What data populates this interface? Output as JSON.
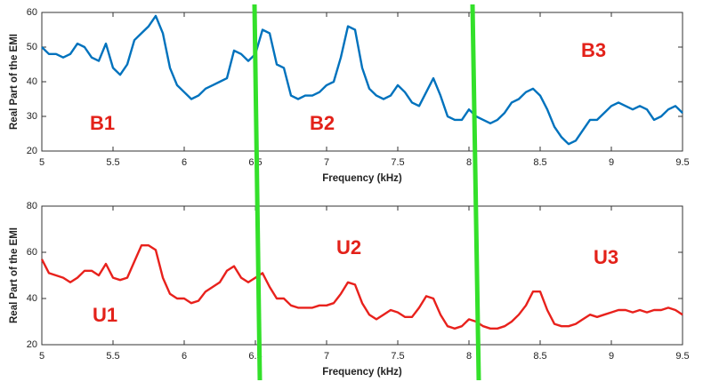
{
  "chart_data": [
    {
      "type": "line",
      "xlabel": "Frequency (kHz)",
      "ylabel": "Real Part of the EMI",
      "x": [
        5,
        5.05,
        5.1,
        5.15,
        5.2,
        5.25,
        5.3,
        5.35,
        5.4,
        5.45,
        5.5,
        5.55,
        5.6,
        5.65,
        5.7,
        5.75,
        5.8,
        5.85,
        5.9,
        5.95,
        6,
        6.05,
        6.1,
        6.15,
        6.2,
        6.25,
        6.3,
        6.35,
        6.4,
        6.45,
        6.5,
        6.55,
        6.6,
        6.65,
        6.7,
        6.75,
        6.8,
        6.85,
        6.9,
        6.95,
        7,
        7.05,
        7.1,
        7.15,
        7.2,
        7.25,
        7.3,
        7.35,
        7.4,
        7.45,
        7.5,
        7.55,
        7.6,
        7.65,
        7.7,
        7.75,
        7.8,
        7.85,
        7.9,
        7.95,
        8,
        8.05,
        8.1,
        8.15,
        8.2,
        8.25,
        8.3,
        8.35,
        8.4,
        8.45,
        8.5,
        8.55,
        8.6,
        8.65,
        8.7,
        8.75,
        8.8,
        8.85,
        8.9,
        8.95,
        9,
        9.05,
        9.1,
        9.15,
        9.2,
        9.25,
        9.3,
        9.35,
        9.4,
        9.45,
        9.5
      ],
      "series": [
        {
          "color": "#0072bd",
          "values": [
            50,
            48,
            48,
            47,
            48,
            51,
            50,
            47,
            46,
            51,
            44,
            42,
            45,
            52,
            54,
            56,
            59,
            54,
            44,
            39,
            37,
            35,
            36,
            38,
            39,
            40,
            41,
            49,
            48,
            46,
            48,
            55,
            54,
            45,
            44,
            36,
            35,
            36,
            36,
            37,
            39,
            40,
            47,
            56,
            55,
            44,
            38,
            36,
            35,
            36,
            39,
            37,
            34,
            33,
            37,
            41,
            36,
            30,
            29,
            29,
            32,
            30,
            29,
            28,
            29,
            31,
            34,
            35,
            37,
            38,
            36,
            32,
            27,
            24,
            22,
            23,
            26,
            29,
            29,
            31,
            33,
            34,
            33,
            32,
            33,
            32,
            29,
            30,
            32,
            33,
            31
          ]
        }
      ],
      "xlim": [
        5,
        9.5
      ],
      "ylim": [
        20,
        60
      ],
      "xticks": [
        5,
        5.5,
        6,
        6.5,
        7,
        7.5,
        8,
        8.5,
        9,
        9.5
      ],
      "yticks": [
        20,
        30,
        40,
        50,
        60
      ],
      "annotations": [
        "B1",
        "B2",
        "B3"
      ]
    },
    {
      "type": "line",
      "xlabel": "Frequency (kHz)",
      "ylabel": "Real Part of the EMI",
      "x": [
        5,
        5.05,
        5.1,
        5.15,
        5.2,
        5.25,
        5.3,
        5.35,
        5.4,
        5.45,
        5.5,
        5.55,
        5.6,
        5.65,
        5.7,
        5.75,
        5.8,
        5.85,
        5.9,
        5.95,
        6,
        6.05,
        6.1,
        6.15,
        6.2,
        6.25,
        6.3,
        6.35,
        6.4,
        6.45,
        6.5,
        6.55,
        6.6,
        6.65,
        6.7,
        6.75,
        6.8,
        6.85,
        6.9,
        6.95,
        7,
        7.05,
        7.1,
        7.15,
        7.2,
        7.25,
        7.3,
        7.35,
        7.4,
        7.45,
        7.5,
        7.55,
        7.6,
        7.65,
        7.7,
        7.75,
        7.8,
        7.85,
        7.9,
        7.95,
        8,
        8.05,
        8.1,
        8.15,
        8.2,
        8.25,
        8.3,
        8.35,
        8.4,
        8.45,
        8.5,
        8.55,
        8.6,
        8.65,
        8.7,
        8.75,
        8.8,
        8.85,
        8.9,
        8.95,
        9,
        9.05,
        9.1,
        9.15,
        9.2,
        9.25,
        9.3,
        9.35,
        9.4,
        9.45,
        9.5
      ],
      "series": [
        {
          "color": "#e8211c",
          "values": [
            57,
            51,
            50,
            49,
            47,
            49,
            52,
            52,
            50,
            55,
            49,
            48,
            49,
            56,
            63,
            63,
            61,
            49,
            42,
            40,
            40,
            38,
            39,
            43,
            45,
            47,
            52,
            54,
            49,
            47,
            49,
            51,
            45,
            40,
            40,
            37,
            36,
            36,
            36,
            37,
            37,
            38,
            42,
            47,
            46,
            38,
            33,
            31,
            33,
            35,
            34,
            32,
            32,
            36,
            41,
            40,
            33,
            28,
            27,
            28,
            31,
            30,
            28,
            27,
            27,
            28,
            30,
            33,
            37,
            43,
            43,
            35,
            29,
            28,
            28,
            29,
            31,
            33,
            32,
            33,
            34,
            35,
            35,
            34,
            35,
            34,
            35,
            35,
            36,
            35,
            33
          ]
        }
      ],
      "xlim": [
        5,
        9.5
      ],
      "ylim": [
        20,
        80
      ],
      "xticks": [
        5,
        5.5,
        6,
        6.5,
        7,
        7.5,
        8,
        8.5,
        9,
        9.5
      ],
      "yticks": [
        20,
        40,
        60,
        80
      ],
      "annotations": [
        "U1",
        "U2",
        "U3"
      ]
    }
  ]
}
